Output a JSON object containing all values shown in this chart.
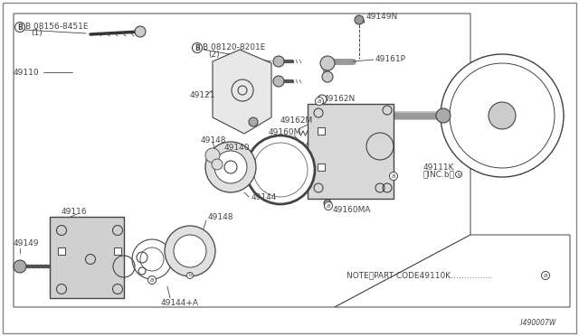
{
  "bg_color": "#ffffff",
  "lc": "#444444",
  "note_text": "NOTE、PART CODE49110K‥‥‥‥‥‥‥‥ⓐ",
  "diagram_id": "I490007W",
  "labels": {
    "B_08156": "B  08156-8451E\n   (1)",
    "49110": "49110",
    "B_08120": "B  08120-8201E\n     (2)",
    "49121": "49121",
    "49149N": "49149N",
    "49161P": "49161P",
    "49162N": "a  49162N",
    "49162M": "49162M",
    "49160M": "49160M",
    "49140": "49140",
    "49148": "49148",
    "49144": "49144",
    "49116": "49116",
    "49149": "49149",
    "49148b": "49148",
    "49144A": "49144+A",
    "49160MA": "49160MA",
    "49111K": "49111K\n〈INC.b〉"
  }
}
